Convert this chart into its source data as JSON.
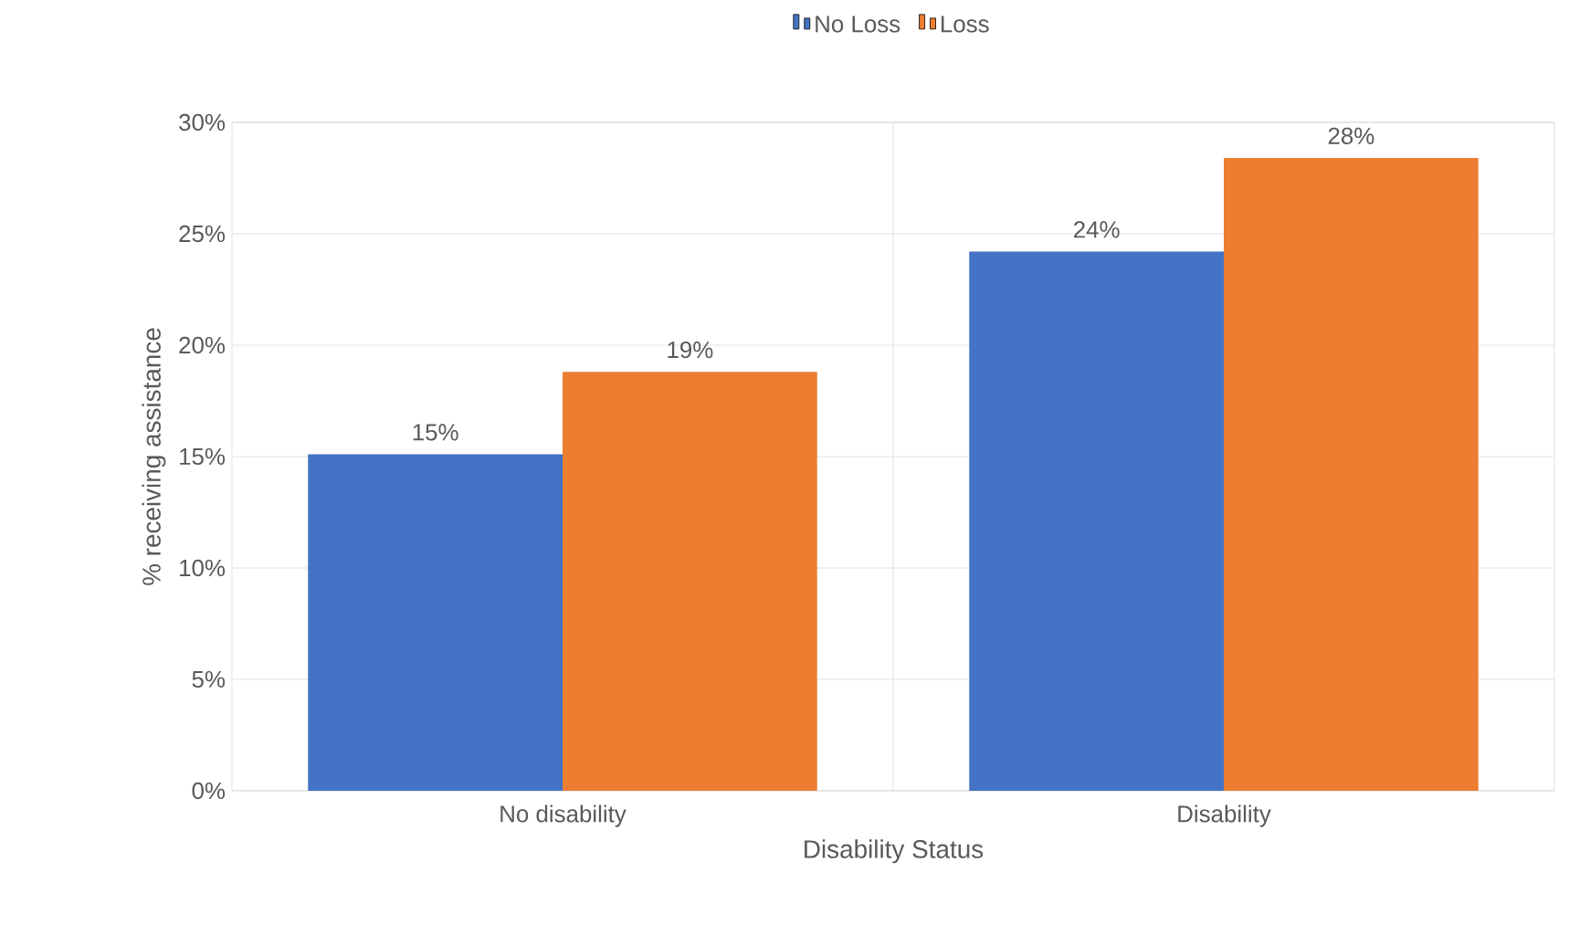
{
  "chart_data": {
    "type": "bar",
    "xlabel": "Disability Status",
    "ylabel": "% receiving assistance",
    "categories": [
      "No disability",
      "Disability"
    ],
    "series": [
      {
        "name": "No Loss",
        "color": "#4472c4",
        "values": [
          15.1,
          24.2
        ],
        "value_labels": [
          "15%",
          "24%"
        ]
      },
      {
        "name": "Loss",
        "color": "#ed7d31",
        "values": [
          18.8,
          28.4
        ],
        "value_labels": [
          "19%",
          "28%"
        ]
      }
    ],
    "ylim": [
      0,
      30
    ],
    "yticks": [
      {
        "value": 0,
        "label": "0%"
      },
      {
        "value": 5,
        "label": "5%"
      },
      {
        "value": 10,
        "label": "10%"
      },
      {
        "value": 15,
        "label": "15%"
      },
      {
        "value": 20,
        "label": "20%"
      },
      {
        "value": 25,
        "label": "25%"
      },
      {
        "value": 30,
        "label": "30%"
      }
    ],
    "grid": true,
    "legend": "top"
  }
}
